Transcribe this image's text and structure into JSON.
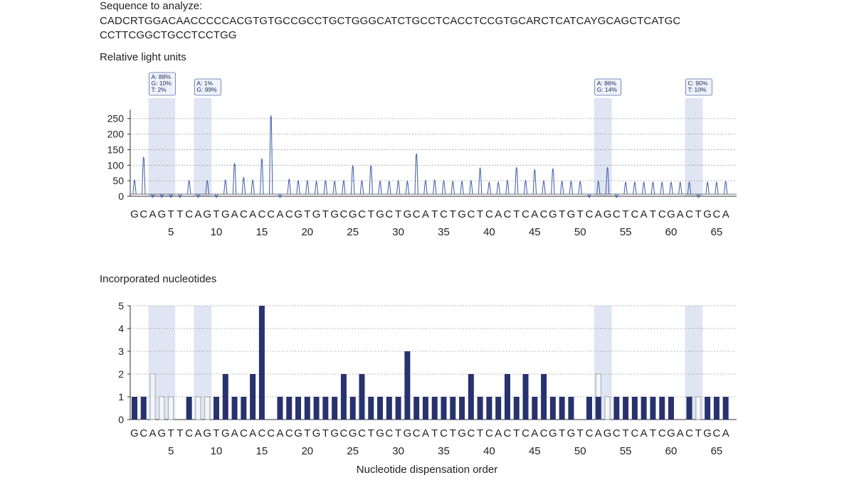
{
  "sequence": {
    "label": "Sequence to analyze:",
    "line1": "CADCRTGGACAACCCCCACGTGTGCCGCCTGCTGGGCATCTGCCTCACCTCCGTGCARCTCATCAYGCAGCTCATGC",
    "line2": "CCTTCGGCTGCCTCCTGG"
  },
  "colors": {
    "bar": "#27326e",
    "line": "#3a5aa8",
    "band": "#dfe5f2",
    "grid": "#888888"
  },
  "chart_data": [
    {
      "type": "line",
      "title": "Relative light units",
      "dispensation": [
        "G",
        "C",
        "A",
        "G",
        "T",
        "T",
        "C",
        "A",
        "G",
        "T",
        "G",
        "A",
        "C",
        "A",
        "C",
        "C",
        "A",
        "C",
        "G",
        "T",
        "G",
        "T",
        "G",
        "C",
        "G",
        "C",
        "T",
        "G",
        "C",
        "T",
        "G",
        "C",
        "A",
        "T",
        "C",
        "T",
        "G",
        "C",
        "T",
        "C",
        "A",
        "C",
        "T",
        "C",
        "A",
        "C",
        "G",
        "T",
        "G",
        "T",
        "C",
        "A",
        "G",
        "C",
        "T",
        "C",
        "A",
        "T",
        "C",
        "G",
        "A",
        "C",
        "T",
        "G",
        "C",
        "A"
      ],
      "x": [
        1,
        2,
        3,
        4,
        5,
        6,
        7,
        8,
        9,
        10,
        11,
        12,
        13,
        14,
        15,
        16,
        17,
        18,
        19,
        20,
        21,
        22,
        23,
        24,
        25,
        26,
        27,
        28,
        29,
        30,
        31,
        32,
        33,
        34,
        35,
        36,
        37,
        38,
        39,
        40,
        41,
        42,
        43,
        44,
        45,
        46,
        47,
        48,
        49,
        50,
        51,
        52,
        53,
        54,
        55,
        56,
        57,
        58,
        59,
        60,
        61,
        62,
        63,
        64,
        65,
        66
      ],
      "values": [
        52,
        125,
        2,
        2,
        2,
        2,
        50,
        2,
        50,
        2,
        52,
        105,
        60,
        52,
        120,
        258,
        2,
        55,
        50,
        50,
        48,
        50,
        48,
        50,
        98,
        50,
        98,
        48,
        48,
        50,
        48,
        136,
        50,
        52,
        50,
        48,
        48,
        50,
        90,
        45,
        45,
        50,
        92,
        50,
        85,
        50,
        88,
        48,
        48,
        48,
        2,
        48,
        92,
        2,
        45,
        45,
        45,
        45,
        45,
        45,
        45,
        45,
        2,
        45,
        45,
        48
      ],
      "x_ticks": [
        5,
        10,
        15,
        20,
        25,
        30,
        35,
        40,
        45,
        50,
        55,
        60,
        65
      ],
      "y_ticks": [
        0,
        50,
        100,
        150,
        200,
        250
      ],
      "ylim": [
        0,
        270
      ],
      "highlights": [
        {
          "positions": [
            3,
            4,
            5
          ],
          "label_lines": [
            "A: 88%",
            "G: 10%",
            "T: 2%"
          ]
        },
        {
          "positions": [
            8,
            9
          ],
          "label_lines": [
            "A: 1%",
            "G: 99%"
          ]
        },
        {
          "positions": [
            52,
            53
          ],
          "label_lines": [
            "A: 86%",
            "G: 14%"
          ]
        },
        {
          "positions": [
            62,
            63
          ],
          "label_lines": [
            "C: 90%",
            "T: 10%"
          ]
        }
      ]
    },
    {
      "type": "bar",
      "title": "Incorporated nucleotides",
      "xlabel": "Nucleotide dispensation order",
      "x": [
        1,
        2,
        3,
        4,
        5,
        6,
        7,
        8,
        9,
        10,
        11,
        12,
        13,
        14,
        15,
        16,
        17,
        18,
        19,
        20,
        21,
        22,
        23,
        24,
        25,
        26,
        27,
        28,
        29,
        30,
        31,
        32,
        33,
        34,
        35,
        36,
        37,
        38,
        39,
        40,
        41,
        42,
        43,
        44,
        45,
        46,
        47,
        48,
        49,
        50,
        51,
        52,
        53,
        54,
        55,
        56,
        57,
        58,
        59,
        60,
        61,
        62,
        63,
        64,
        65,
        66
      ],
      "values": [
        1,
        1,
        0,
        0,
        0,
        0,
        1,
        0,
        0,
        1,
        2,
        1,
        1,
        2,
        5,
        0,
        1,
        1,
        1,
        1,
        1,
        1,
        1,
        2,
        1,
        2,
        1,
        1,
        1,
        1,
        3,
        1,
        1,
        1,
        1,
        1,
        1,
        2,
        1,
        1,
        1,
        2,
        1,
        2,
        1,
        2,
        1,
        1,
        1,
        0,
        1,
        1,
        0,
        1,
        1,
        1,
        1,
        1,
        1,
        1,
        0,
        1,
        0,
        1,
        1,
        1
      ],
      "expected_outlines": [
        {
          "x": 2,
          "value": 1
        },
        {
          "x": 3,
          "value": 2
        },
        {
          "x": 4,
          "value": 1
        },
        {
          "x": 5,
          "value": 1
        },
        {
          "x": 8,
          "value": 1
        },
        {
          "x": 9,
          "value": 1
        },
        {
          "x": 52,
          "value": 2
        },
        {
          "x": 53,
          "value": 1
        },
        {
          "x": 62,
          "value": 1
        },
        {
          "x": 63,
          "value": 1
        }
      ],
      "x_ticks": [
        5,
        10,
        15,
        20,
        25,
        30,
        35,
        40,
        45,
        50,
        55,
        60,
        65
      ],
      "y_ticks": [
        0,
        1,
        2,
        3,
        4,
        5
      ],
      "ylim": [
        0,
        5
      ]
    }
  ]
}
